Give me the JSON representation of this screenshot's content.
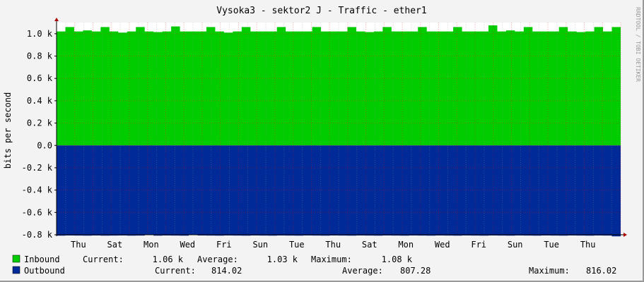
{
  "chart_data": {
    "type": "area",
    "title": "Vysoka3 - sektor2 J - Traffic - ether1",
    "ylabel": "bits per second",
    "watermark": "RRDTOOL / TOBI OETIKER",
    "ylim": [
      -800,
      1100
    ],
    "xlim_days": [
      0,
      31
    ],
    "grid": true,
    "y_ticks": [
      {
        "v": 1000,
        "label": "1.0 k"
      },
      {
        "v": 800,
        "label": "0.8 k"
      },
      {
        "v": 600,
        "label": "0.6 k"
      },
      {
        "v": 400,
        "label": "0.4 k"
      },
      {
        "v": 200,
        "label": "0.2 k"
      },
      {
        "v": 0,
        "label": "0.0"
      },
      {
        "v": -200,
        "label": "-0.2 k"
      },
      {
        "v": -400,
        "label": "-0.4 k"
      },
      {
        "v": -600,
        "label": "-0.6 k"
      },
      {
        "v": -800,
        "label": "-0.8 k"
      }
    ],
    "x_ticks": [
      {
        "day": 1.2,
        "label": "Thu"
      },
      {
        "day": 3.2,
        "label": "Sat"
      },
      {
        "day": 5.2,
        "label": "Mon"
      },
      {
        "day": 7.2,
        "label": "Wed"
      },
      {
        "day": 9.2,
        "label": "Fri"
      },
      {
        "day": 11.2,
        "label": "Sun"
      },
      {
        "day": 13.2,
        "label": "Tue"
      },
      {
        "day": 15.2,
        "label": "Thu"
      },
      {
        "day": 17.2,
        "label": "Sat"
      },
      {
        "day": 19.2,
        "label": "Mon"
      },
      {
        "day": 21.2,
        "label": "Wed"
      },
      {
        "day": 23.2,
        "label": "Fri"
      },
      {
        "day": 25.2,
        "label": "Sun"
      },
      {
        "day": 27.2,
        "label": "Tue"
      },
      {
        "day": 29.2,
        "label": "Thu"
      }
    ],
    "series": [
      {
        "name": "Inbound",
        "color": "#00cc00",
        "current": "1.06 k",
        "average": "1.03 k",
        "maximum": "1.08 k",
        "values": [
          1020,
          1060,
          1020,
          1030,
          1020,
          1060,
          1020,
          1010,
          1020,
          1060,
          1020,
          1015,
          1020,
          1065,
          1020,
          1020,
          1020,
          1060,
          1020,
          1010,
          1020,
          1060,
          1020,
          1020,
          1020,
          1060,
          1020,
          1020,
          1020,
          1060,
          1020,
          1020,
          1020,
          1060,
          1020,
          1015,
          1020,
          1060,
          1020,
          1020,
          1020,
          1060,
          1020,
          1020,
          1020,
          1060,
          1020,
          1020,
          1020,
          1075,
          1020,
          1030,
          1020,
          1060,
          1020,
          1020,
          1020,
          1060,
          1020,
          1015,
          1020,
          1060,
          1020,
          1060
        ]
      },
      {
        "name": "Outbound",
        "color": "#002a97",
        "current": "814.02",
        "average": "807.28",
        "maximum": "816.02",
        "values": [
          -808,
          -806,
          -807,
          -808,
          -806,
          -808,
          -807,
          -806,
          -808,
          -807,
          -800,
          -808,
          -806,
          -807,
          -808,
          -801,
          -806,
          -807,
          -808,
          -806,
          -807,
          -808,
          -806,
          -807,
          -808,
          -806,
          -807,
          -808,
          -806,
          -807,
          -808,
          -806,
          -807,
          -808,
          -806,
          -807,
          -808,
          -806,
          -807,
          -808,
          -806,
          -807,
          -808,
          -806,
          -807,
          -808,
          -806,
          -807,
          -808,
          -806,
          -807,
          -808,
          -806,
          -807,
          -808,
          -806,
          -807,
          -808,
          -806,
          -807,
          -808,
          -806,
          -807,
          -814
        ]
      }
    ]
  },
  "legend": {
    "current_label": "Current:",
    "average_label": "Average:",
    "maximum_label": "Maximum:"
  }
}
